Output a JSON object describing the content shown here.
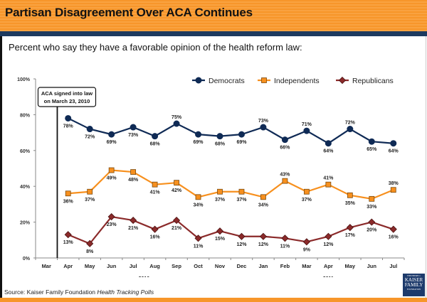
{
  "header": {
    "title": "Partisan Disagreement Over ACA Continues"
  },
  "subtitle": "Percent who say they have a favorable opinion of the health reform law:",
  "footer": {
    "source_prefix": "Source: Kaiser Family Foundation ",
    "source_italic": "Health Tracking Polls",
    "logo_line1": "THE HENRY J.",
    "logo_line2": "KAISER",
    "logo_line3": "FAMILY",
    "logo_line4": "FOUNDATION"
  },
  "colors": {
    "header_orange": "#f7962a",
    "header_navy": "#1d3a5f",
    "democrats": "#0f2a55",
    "independents": "#f7901e",
    "republicans": "#8b2a2a"
  },
  "chart_data": {
    "type": "line",
    "title": "Partisan Disagreement Over ACA Continues",
    "subtitle": "Percent who say they have a favorable opinion of the health reform law:",
    "xlabel": "",
    "ylabel": "",
    "ylim": [
      0,
      100
    ],
    "yticks": [
      "0%",
      "20%",
      "40%",
      "60%",
      "80%",
      "100%"
    ],
    "ytick_values": [
      0,
      20,
      40,
      60,
      80,
      100
    ],
    "categories": [
      "Mar",
      "Apr",
      "May",
      "Jun",
      "Jul",
      "Aug",
      "Sep",
      "Oct",
      "Nov",
      "Dec",
      "Jan",
      "Feb",
      "Mar",
      "Apr",
      "May",
      "Jun",
      "Jul"
    ],
    "year_groups": [
      {
        "label": "2010",
        "from": 0,
        "to": 9
      },
      {
        "label": "2011",
        "from": 10,
        "to": 16
      }
    ],
    "legend": {
      "placement": "top-right",
      "entries": [
        "Democrats",
        "Independents",
        "Republicans"
      ]
    },
    "annotation": {
      "line1": "ACA signed into law",
      "line2": "on March 23, 2010",
      "at_category_index": 0.5
    },
    "series": [
      {
        "name": "Democrats",
        "marker": "circle",
        "values": [
          null,
          78,
          72,
          69,
          73,
          68,
          75,
          69,
          68,
          69,
          73,
          66,
          71,
          64,
          72,
          65,
          64
        ]
      },
      {
        "name": "Independents",
        "marker": "square",
        "values": [
          null,
          36,
          37,
          49,
          48,
          41,
          42,
          34,
          37,
          37,
          34,
          43,
          37,
          41,
          35,
          33,
          38
        ]
      },
      {
        "name": "Republicans",
        "marker": "diamond",
        "values": [
          null,
          13,
          8,
          23,
          21,
          16,
          21,
          11,
          15,
          12,
          12,
          11,
          9,
          12,
          17,
          20,
          16
        ]
      }
    ]
  }
}
